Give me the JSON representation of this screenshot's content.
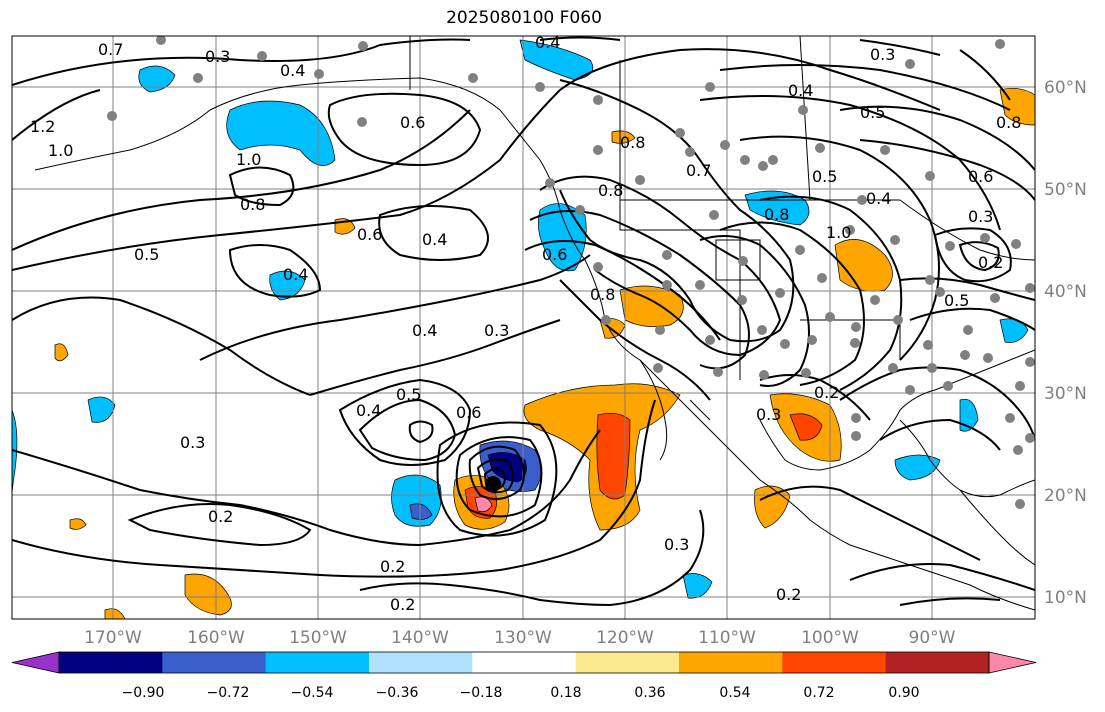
{
  "title": "2025080100 F060",
  "map": {
    "lat_labels": [
      "60°N",
      "50°N",
      "40°N",
      "30°N",
      "20°N",
      "10°N"
    ],
    "lon_labels": [
      "170°W",
      "160°W",
      "150°W",
      "140°W",
      "130°W",
      "120°W",
      "110°W",
      "100°W",
      "90°W"
    ],
    "contour_labels": [
      "0.7",
      "0.3",
      "0.4",
      "1.2",
      "1.0",
      "0.6",
      "1.0",
      "0.8",
      "0.5",
      "0.4",
      "0.6",
      "0.4",
      "0.3",
      "0.4",
      "0.5",
      "0.6",
      "0.4",
      "0.3",
      "0.2",
      "0.2",
      "0.3",
      "0.2",
      "0.8",
      "0.7",
      "0.8",
      "0.8",
      "0.6",
      "0.8",
      "0.3",
      "0.2",
      "0.3",
      "0.2",
      "0.4",
      "0.5",
      "0.6",
      "0.5",
      "0.4",
      "1.0",
      "0.3",
      "0.2",
      "0.5",
      "0.8",
      "0.4"
    ],
    "colors": {
      "coast": "#000000",
      "grid": "#808080",
      "station": "#808080",
      "pos_shades": [
        "#fdea8c",
        "#ffa500",
        "#ff4500",
        "#b22222",
        "#ff88a8"
      ],
      "neg_shades": [
        "#9932cc",
        "#000080",
        "#3a5fcd",
        "#00bfff",
        "#b0e2ff"
      ]
    }
  },
  "colorbar": {
    "ticks": [
      "−0.90",
      "−0.72",
      "−0.54",
      "−0.36",
      "−0.18",
      "0.18",
      "0.36",
      "0.54",
      "0.72",
      "0.90"
    ],
    "colors": [
      "#9932cc",
      "#000080",
      "#3a5fcd",
      "#00bfff",
      "#b0e2ff",
      "#ffffff",
      "#fdea8c",
      "#ffa500",
      "#ff4500",
      "#b22222",
      "#ff88a8"
    ]
  }
}
